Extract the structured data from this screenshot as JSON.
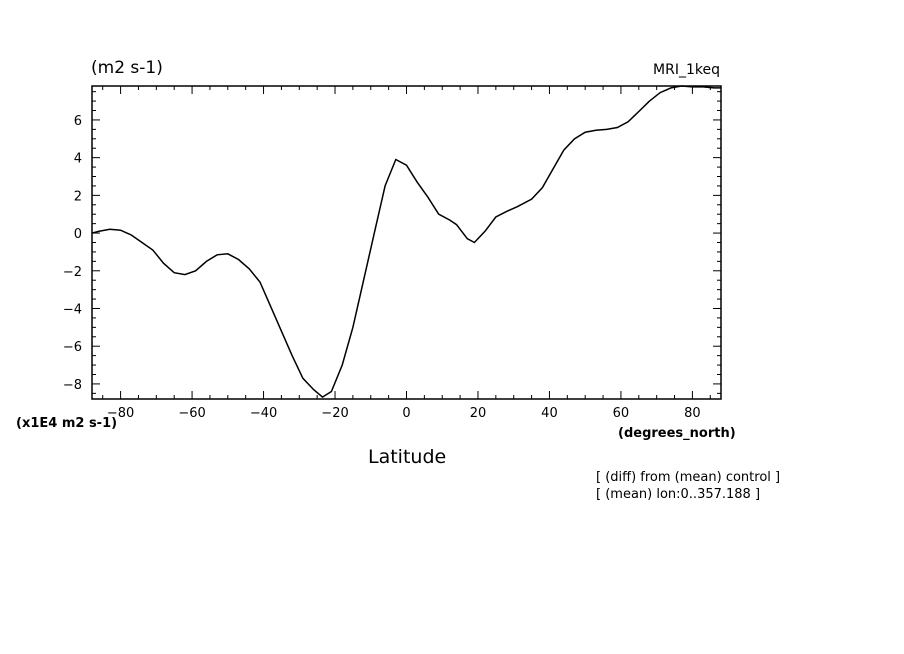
{
  "header": {
    "units_title": "(m2 s-1)",
    "run_label": "MRI_1keq"
  },
  "axes": {
    "y_scale_label": "(x1E4 m2 s-1)",
    "x_units": "(degrees_north)",
    "x_title": "Latitude"
  },
  "notes": {
    "line1": "[ (diff) from (mean) control ]",
    "line2": "[ (mean) lon:0..357.188 ]"
  },
  "chart_data": {
    "type": "line",
    "xlabel": "Latitude",
    "ylabel": "(m2 s-1)",
    "xlim": [
      -88,
      88
    ],
    "ylim": [
      -8.8,
      7.8
    ],
    "xticks": [
      -80,
      -60,
      -40,
      -20,
      0,
      20,
      40,
      60,
      80
    ],
    "yticks": [
      -8,
      -6,
      -4,
      -2,
      0,
      2,
      4,
      6
    ],
    "grid": false,
    "series": [
      {
        "color": "#000000",
        "x": [
          -88,
          -86,
          -83,
          -80,
          -77,
          -74,
          -71,
          -68,
          -65,
          -62,
          -59,
          -56,
          -53,
          -50,
          -47,
          -44,
          -41,
          -38,
          -35,
          -32,
          -29,
          -26,
          -23.5,
          -21,
          -18,
          -15,
          -12,
          -9,
          -6,
          -3,
          0,
          3,
          6,
          9,
          12,
          14,
          17,
          19,
          22,
          25,
          28,
          31,
          35,
          38,
          41,
          44,
          47,
          50,
          53,
          56,
          59,
          62,
          65,
          68,
          71,
          74,
          77,
          80,
          83,
          86,
          88
        ],
        "y": [
          0.0,
          0.1,
          0.2,
          0.15,
          -0.1,
          -0.5,
          -0.9,
          -1.6,
          -2.1,
          -2.2,
          -2.0,
          -1.5,
          -1.15,
          -1.1,
          -1.4,
          -1.9,
          -2.6,
          -3.9,
          -5.2,
          -6.5,
          -7.7,
          -8.3,
          -8.7,
          -8.4,
          -7.0,
          -5.0,
          -2.5,
          0.0,
          2.5,
          3.9,
          3.6,
          2.7,
          1.9,
          1.0,
          0.7,
          0.45,
          -0.3,
          -0.5,
          0.1,
          0.85,
          1.15,
          1.4,
          1.8,
          2.4,
          3.4,
          4.4,
          5.0,
          5.35,
          5.45,
          5.5,
          5.6,
          5.9,
          6.45,
          7.0,
          7.45,
          7.7,
          7.8,
          7.75,
          7.75,
          7.7,
          7.7
        ]
      }
    ]
  }
}
